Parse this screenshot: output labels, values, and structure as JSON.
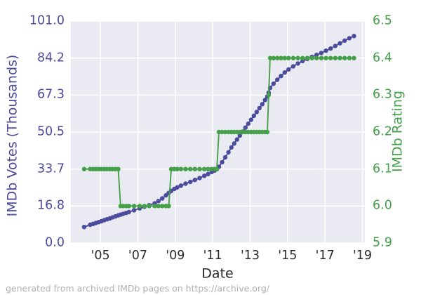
{
  "footer": {
    "note": "generated from archived IMDb pages on https://archive.org/"
  },
  "chart_data": {
    "type": "line",
    "title": "",
    "xlabel": "Date",
    "grid": true,
    "plot_background": "#eaeaf2",
    "grid_color": "#ffffff",
    "x_tick_labels": [
      "'05",
      "'07",
      "'09",
      "'11",
      "'13",
      "'15",
      "'17",
      "'19"
    ],
    "x_tick_years": [
      2005,
      2007,
      2009,
      2011,
      2013,
      2015,
      2017,
      2019
    ],
    "xlim": [
      2003.42,
      2019.13
    ],
    "left_axis": {
      "label": "IMDb Votes (Thousands)",
      "color": "#4c4c9e",
      "ticks": [
        "0.0",
        "16.8",
        "33.7",
        "50.5",
        "67.3",
        "84.2",
        "101.0"
      ],
      "tick_values": [
        0.0,
        16.83,
        33.67,
        50.5,
        67.33,
        84.17,
        101.0
      ],
      "lim": [
        0,
        101
      ]
    },
    "right_axis": {
      "label": "IMDb Rating",
      "color": "#44a049",
      "ticks": [
        "5.9",
        "6.0",
        "6.1",
        "6.2",
        "6.3",
        "6.4",
        "6.5"
      ],
      "tick_values": [
        5.9,
        6.0,
        6.1,
        6.2,
        6.3,
        6.4,
        6.5
      ],
      "lim": [
        5.9,
        6.5
      ]
    },
    "x": [
      2004.13,
      2004.45,
      2004.6,
      2004.75,
      2004.9,
      2005.05,
      2005.2,
      2005.35,
      2005.5,
      2005.65,
      2005.8,
      2005.95,
      2006.08,
      2006.22,
      2006.38,
      2006.52,
      2006.8,
      2007.1,
      2007.35,
      2007.6,
      2007.9,
      2008.1,
      2008.3,
      2008.5,
      2008.65,
      2008.78,
      2008.95,
      2009.1,
      2009.3,
      2009.55,
      2009.8,
      2010.05,
      2010.3,
      2010.55,
      2010.75,
      2010.95,
      2011.1,
      2011.22,
      2011.33,
      2011.5,
      2011.67,
      2011.84,
      2012.0,
      2012.15,
      2012.3,
      2012.45,
      2012.6,
      2012.75,
      2012.9,
      2013.05,
      2013.2,
      2013.35,
      2013.5,
      2013.65,
      2013.8,
      2013.92,
      2013.99,
      2014.07,
      2014.25,
      2014.45,
      2014.65,
      2014.85,
      2015.05,
      2015.3,
      2015.55,
      2015.8,
      2016.05,
      2016.3,
      2016.55,
      2016.8,
      2017.05,
      2017.3,
      2017.55,
      2017.8,
      2018.05,
      2018.3,
      2018.55
    ],
    "series": [
      {
        "name": "IMDb Votes (Thousands)",
        "axis": "left",
        "color": "#4c4c9e",
        "values": [
          7.3,
          8.3,
          8.7,
          9.1,
          9.5,
          9.9,
          10.4,
          10.8,
          11.2,
          11.7,
          12.1,
          12.6,
          12.9,
          13.3,
          13.7,
          14.1,
          14.9,
          15.8,
          16.5,
          17.2,
          18.1,
          19.1,
          20.3,
          21.7,
          22.8,
          23.7,
          24.6,
          25.3,
          26.1,
          27.0,
          27.8,
          28.7,
          29.6,
          30.6,
          31.4,
          32.3,
          33.0,
          33.6,
          34.7,
          36.8,
          39.0,
          41.3,
          43.5,
          45.3,
          47.1,
          48.9,
          50.7,
          52.5,
          54.3,
          56.1,
          57.9,
          59.6,
          61.4,
          63.2,
          65.1,
          66.7,
          68.4,
          70.6,
          72.5,
          74.3,
          76.0,
          77.6,
          79.0,
          80.4,
          81.7,
          82.8,
          83.8,
          84.7,
          85.6,
          86.5,
          87.5,
          88.5,
          89.7,
          90.9,
          92.1,
          93.2,
          94.2
        ]
      },
      {
        "name": "IMDb Rating",
        "axis": "right",
        "color": "#44a049",
        "values": [
          6.1,
          6.1,
          6.1,
          6.1,
          6.1,
          6.1,
          6.1,
          6.1,
          6.1,
          6.1,
          6.1,
          6.1,
          6.0,
          6.0,
          6.0,
          6.0,
          6.0,
          6.0,
          6.0,
          6.0,
          6.0,
          6.0,
          6.0,
          6.0,
          6.0,
          6.1,
          6.1,
          6.1,
          6.1,
          6.1,
          6.1,
          6.1,
          6.1,
          6.1,
          6.1,
          6.1,
          6.1,
          6.1,
          6.2,
          6.2,
          6.2,
          6.2,
          6.2,
          6.2,
          6.2,
          6.2,
          6.2,
          6.2,
          6.2,
          6.2,
          6.2,
          6.2,
          6.2,
          6.2,
          6.2,
          6.2,
          6.3,
          6.4,
          6.4,
          6.4,
          6.4,
          6.4,
          6.4,
          6.4,
          6.4,
          6.4,
          6.4,
          6.4,
          6.4,
          6.4,
          6.4,
          6.4,
          6.4,
          6.4,
          6.4,
          6.4,
          6.4
        ]
      }
    ]
  }
}
